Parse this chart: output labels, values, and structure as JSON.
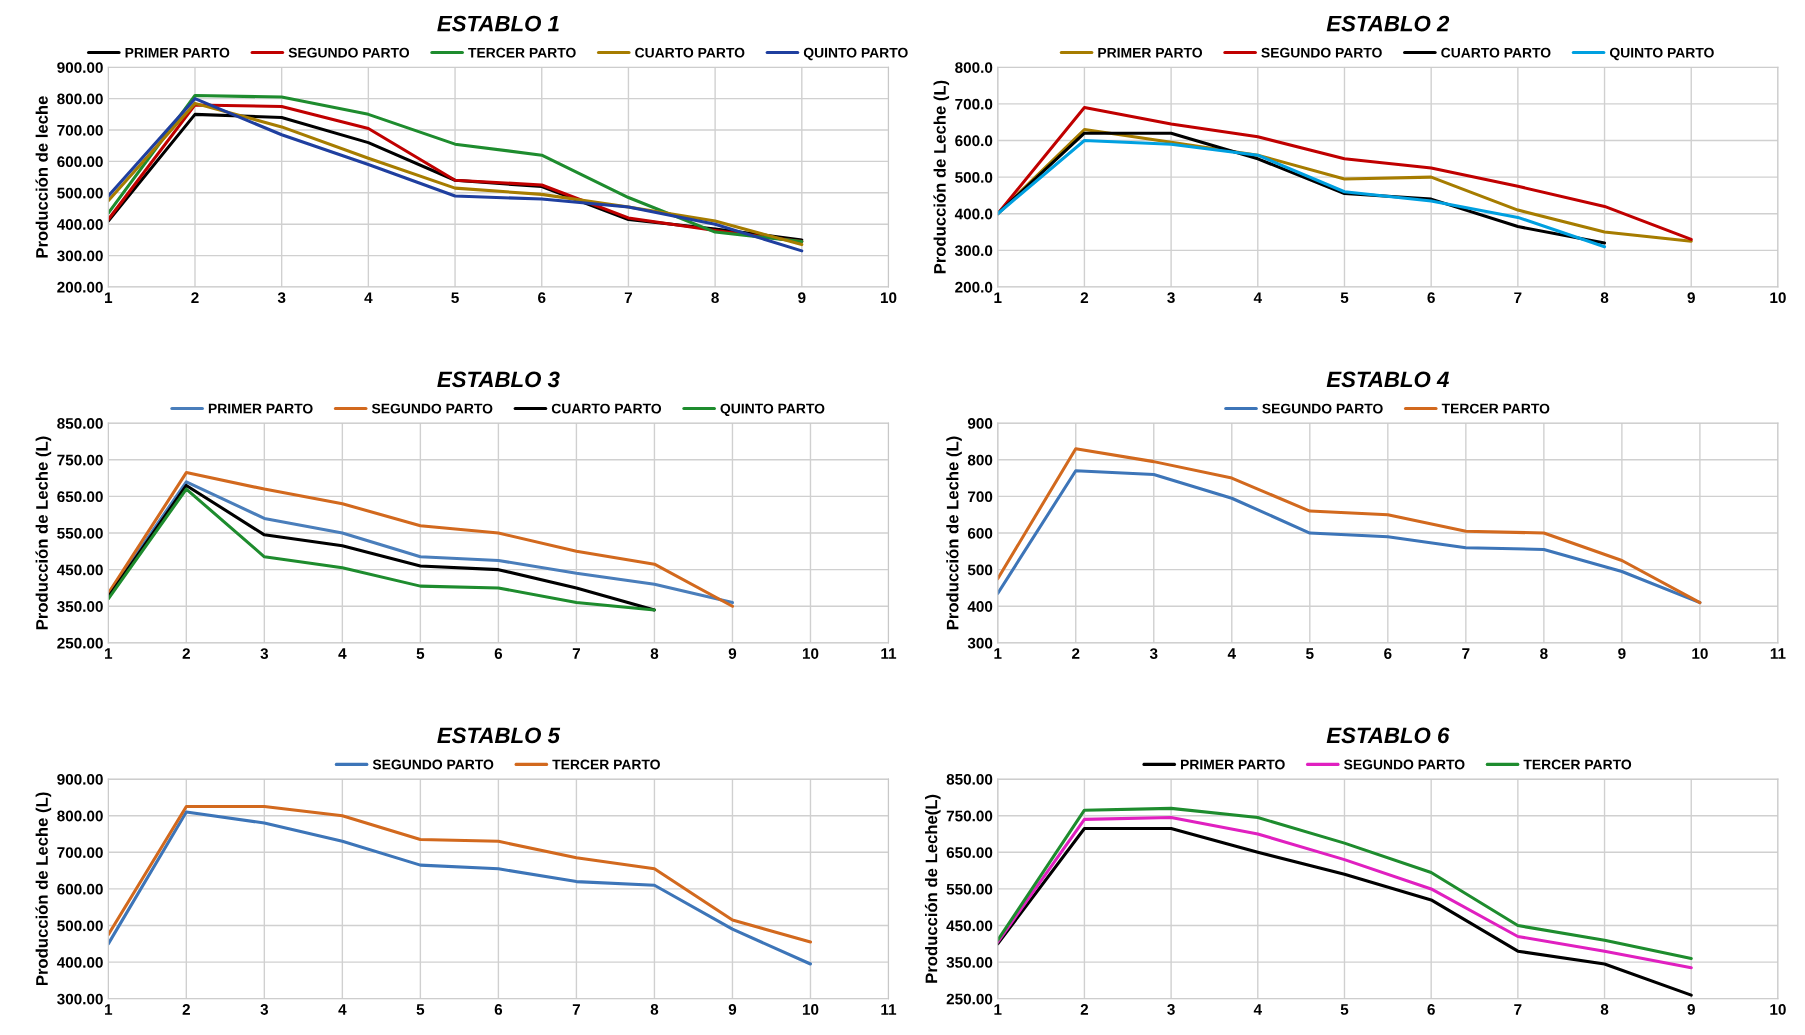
{
  "chart_data": [
    {
      "type": "line",
      "title": "ESTABLO 1",
      "ylabel": "Producción de leche",
      "x": [
        1,
        2,
        3,
        4,
        5,
        6,
        7,
        8,
        9
      ],
      "xlim": [
        1,
        10
      ],
      "xticks": [
        1,
        2,
        3,
        4,
        5,
        6,
        7,
        8,
        9,
        10
      ],
      "ylim": [
        200,
        900
      ],
      "yticks": [
        {
          "value": 200,
          "label": "200.00"
        },
        {
          "value": 300,
          "label": "300.00"
        },
        {
          "value": 400,
          "label": "400.00"
        },
        {
          "value": 500,
          "label": "500.00"
        },
        {
          "value": 600,
          "label": "600.00"
        },
        {
          "value": 700,
          "label": "700.00"
        },
        {
          "value": 800,
          "label": "800.00"
        },
        {
          "value": 900,
          "label": "900.00"
        }
      ],
      "grid": true,
      "legend": "top",
      "marker": "none",
      "line_style": "solid",
      "series": [
        {
          "name": "PRIMER PARTO",
          "color": "#000000",
          "values": [
            410,
            750,
            740,
            660,
            540,
            520,
            415,
            385,
            350
          ]
        },
        {
          "name": "SEGUNDO PARTO",
          "color": "#c00000",
          "values": [
            415,
            780,
            775,
            705,
            540,
            525,
            420,
            380,
            345
          ]
        },
        {
          "name": "TERCER PARTO",
          "color": "#1e8c2e",
          "values": [
            435,
            810,
            805,
            750,
            655,
            620,
            485,
            375,
            345
          ]
        },
        {
          "name": "CUARTO PARTO",
          "color": "#a67c00",
          "values": [
            475,
            785,
            710,
            610,
            515,
            495,
            455,
            410,
            335
          ]
        },
        {
          "name": "QUINTO PARTO",
          "color": "#1f3f9f",
          "values": [
            490,
            800,
            685,
            590,
            490,
            480,
            455,
            400,
            315
          ]
        }
      ]
    },
    {
      "type": "line",
      "title": "ESTABLO 2",
      "ylabel": "Producción de Leche (L)",
      "xlim": [
        1,
        10
      ],
      "xticks": [
        1,
        2,
        3,
        4,
        5,
        6,
        7,
        8,
        9,
        10
      ],
      "ylim": [
        200,
        800
      ],
      "yticks": [
        {
          "value": 200,
          "label": "200.0"
        },
        {
          "value": 300,
          "label": "300.0"
        },
        {
          "value": 400,
          "label": "400.0"
        },
        {
          "value": 500,
          "label": "500.0"
        },
        {
          "value": 600,
          "label": "600.0"
        },
        {
          "value": 700,
          "label": "700.0"
        },
        {
          "value": 800,
          "label": "800.0"
        }
      ],
      "grid": true,
      "legend": "top",
      "marker": "none",
      "line_style": "solid",
      "series": [
        {
          "name": "PRIMER PARTO",
          "color": "#a67c00",
          "x": [
            1,
            2,
            3,
            4,
            5,
            6,
            7,
            8,
            9
          ],
          "values": [
            400,
            630,
            595,
            560,
            495,
            500,
            410,
            350,
            325
          ]
        },
        {
          "name": "SEGUNDO PARTO",
          "color": "#c00000",
          "x": [
            1,
            2,
            3,
            4,
            5,
            6,
            7,
            8,
            9
          ],
          "values": [
            400,
            690,
            645,
            610,
            550,
            525,
            475,
            420,
            330
          ]
        },
        {
          "name": "CUARTO PARTO",
          "color": "#000000",
          "x": [
            1,
            2,
            3,
            4,
            5,
            6,
            7,
            8
          ],
          "values": [
            400,
            620,
            620,
            550,
            455,
            440,
            365,
            320
          ]
        },
        {
          "name": "QUINTO PARTO",
          "color": "#00a0e0",
          "x": [
            1,
            2,
            3,
            4,
            5,
            6,
            7,
            8
          ],
          "values": [
            400,
            600,
            590,
            560,
            460,
            435,
            390,
            310
          ]
        }
      ]
    },
    {
      "type": "line",
      "title": "ESTABLO 3",
      "ylabel": "Producción de Leche (L)",
      "xlim": [
        1,
        11
      ],
      "xticks": [
        1,
        2,
        3,
        4,
        5,
        6,
        7,
        8,
        9,
        10,
        11
      ],
      "ylim": [
        250,
        850
      ],
      "yticks": [
        {
          "value": 250,
          "label": "250.00"
        },
        {
          "value": 350,
          "label": "350.00"
        },
        {
          "value": 450,
          "label": "450.00"
        },
        {
          "value": 550,
          "label": "550.00"
        },
        {
          "value": 650,
          "label": "650.00"
        },
        {
          "value": 750,
          "label": "750.00"
        },
        {
          "value": 850,
          "label": "850.00"
        }
      ],
      "grid": true,
      "legend": "top",
      "marker": "none",
      "line_style": "solid",
      "series": [
        {
          "name": "PRIMER PARTO",
          "color": "#4a7ebb",
          "x": [
            1,
            2,
            3,
            4,
            5,
            6,
            7,
            8,
            9
          ],
          "values": [
            380,
            690,
            590,
            550,
            485,
            475,
            440,
            410,
            360
          ]
        },
        {
          "name": "SEGUNDO PARTO",
          "color": "#d2691e",
          "x": [
            1,
            2,
            3,
            4,
            5,
            6,
            7,
            8,
            9
          ],
          "values": [
            385,
            715,
            670,
            630,
            570,
            550,
            500,
            465,
            350
          ]
        },
        {
          "name": "CUARTO PARTO",
          "color": "#000000",
          "x": [
            1,
            2,
            3,
            4,
            5,
            6,
            7,
            8
          ],
          "values": [
            375,
            680,
            545,
            515,
            460,
            450,
            400,
            340
          ]
        },
        {
          "name": "QUINTO PARTO",
          "color": "#1e8c2e",
          "x": [
            1,
            2,
            3,
            4,
            5,
            6,
            7,
            8
          ],
          "values": [
            370,
            670,
            485,
            455,
            405,
            400,
            360,
            340
          ]
        }
      ]
    },
    {
      "type": "line",
      "title": "ESTABLO 4",
      "ylabel": "Producción de Leche (L)",
      "x": [
        1,
        2,
        3,
        4,
        5,
        6,
        7,
        8,
        9,
        10
      ],
      "xlim": [
        1,
        11
      ],
      "xticks": [
        1,
        2,
        3,
        4,
        5,
        6,
        7,
        8,
        9,
        10,
        11
      ],
      "ylim": [
        300,
        900
      ],
      "yticks": [
        300,
        400,
        500,
        600,
        700,
        800,
        900
      ],
      "grid": true,
      "legend": "top",
      "marker": "none",
      "line_style": "solid",
      "series": [
        {
          "name": "SEGUNDO PARTO",
          "color": "#3d75b8",
          "values": [
            435,
            770,
            760,
            695,
            600,
            590,
            560,
            555,
            495,
            410
          ]
        },
        {
          "name": "TERCER PARTO",
          "color": "#d2691e",
          "values": [
            475,
            830,
            795,
            750,
            660,
            650,
            605,
            600,
            525,
            410
          ]
        }
      ]
    },
    {
      "type": "line",
      "title": "ESTABLO 5",
      "ylabel": "Producción de Leche (L)",
      "x": [
        1,
        2,
        3,
        4,
        5,
        6,
        7,
        8,
        9,
        10
      ],
      "xlim": [
        1,
        11
      ],
      "xticks": [
        1,
        2,
        3,
        4,
        5,
        6,
        7,
        8,
        9,
        10,
        11
      ],
      "ylim": [
        300,
        900
      ],
      "yticks": [
        {
          "value": 300,
          "label": "300.00"
        },
        {
          "value": 400,
          "label": "400.00"
        },
        {
          "value": 500,
          "label": "500.00"
        },
        {
          "value": 600,
          "label": "600.00"
        },
        {
          "value": 700,
          "label": "700.00"
        },
        {
          "value": 800,
          "label": "800.00"
        },
        {
          "value": 900,
          "label": "900.00"
        }
      ],
      "grid": true,
      "legend": "top",
      "marker": "none",
      "line_style": "solid",
      "series": [
        {
          "name": "SEGUNDO PARTO",
          "color": "#3d75b8",
          "values": [
            450,
            810,
            780,
            730,
            665,
            655,
            620,
            610,
            490,
            395
          ]
        },
        {
          "name": "TERCER PARTO",
          "color": "#d2691e",
          "values": [
            475,
            825,
            825,
            800,
            735,
            730,
            685,
            655,
            515,
            455
          ]
        }
      ]
    },
    {
      "type": "line",
      "title": "ESTABLO 6",
      "ylabel": "Producción de Leche(L)",
      "x": [
        1,
        2,
        3,
        4,
        5,
        6,
        7,
        8,
        9
      ],
      "xlim": [
        1,
        10
      ],
      "xticks": [
        1,
        2,
        3,
        4,
        5,
        6,
        7,
        8,
        9,
        10
      ],
      "ylim": [
        250,
        850
      ],
      "yticks": [
        {
          "value": 250,
          "label": "250.00"
        },
        {
          "value": 350,
          "label": "350.00"
        },
        {
          "value": 450,
          "label": "450.00"
        },
        {
          "value": 550,
          "label": "550.00"
        },
        {
          "value": 650,
          "label": "650.00"
        },
        {
          "value": 750,
          "label": "750.00"
        },
        {
          "value": 850,
          "label": "850.00"
        }
      ],
      "grid": true,
      "legend": "top",
      "marker": "none",
      "line_style": "solid",
      "series": [
        {
          "name": "PRIMER PARTO",
          "color": "#000000",
          "values": [
            400,
            715,
            715,
            650,
            590,
            520,
            380,
            345,
            260
          ]
        },
        {
          "name": "SEGUNDO PARTO",
          "color": "#e020c0",
          "values": [
            405,
            740,
            745,
            700,
            630,
            550,
            420,
            380,
            335
          ]
        },
        {
          "name": "TERCER PARTO",
          "color": "#1e8c2e",
          "values": [
            410,
            765,
            770,
            745,
            675,
            595,
            450,
            410,
            360
          ]
        }
      ]
    }
  ]
}
